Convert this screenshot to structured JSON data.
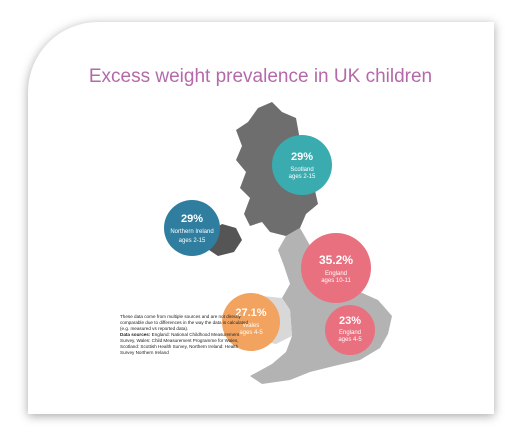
{
  "title": "Excess weight prevalence in UK children",
  "regions": [
    {
      "value": "29%",
      "name": "Scotland",
      "ages": "ages 2-15"
    },
    {
      "value": "29%",
      "name": "Northern Ireland",
      "ages": "ages 2-15"
    },
    {
      "value": "35.2%",
      "name": "England",
      "ages": "ages 10-11"
    },
    {
      "value": "27.1%",
      "name": "Wales",
      "ages": "ages 4-5"
    },
    {
      "value": "23%",
      "name": "England",
      "ages": "ages 4-5"
    }
  ],
  "note": {
    "text": "These data come from multiple sources and are not directly comparable due to differences in the way the data is calculated (e.g. measured vs reported data).",
    "sources_label": "Data sources:",
    "sources": "England: National Childhood Measurement Survey, Wales: Child Measurement Programme for Wales, Scotland: Scottish Health Survey, Northern Ireland: Health Survey Northern Ireland"
  }
}
